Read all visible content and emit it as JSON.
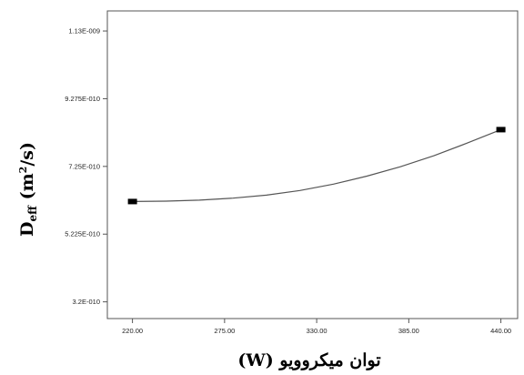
{
  "chart_data": {
    "type": "line",
    "title": "",
    "xlabel": "(W) توان میکروویو",
    "ylabel": {
      "main": "D",
      "sub": "eff",
      "unit_open": " (m",
      "unit_sup": "2",
      "unit_close": "/s)"
    },
    "xlim": [
      205,
      450
    ],
    "ylim": [
      2.7e-10,
      1.19e-09
    ],
    "x_ticks": [
      220,
      275,
      330,
      385,
      440
    ],
    "x_tick_labels": [
      "220.00",
      "275.00",
      "330.00",
      "385.00",
      "440.00"
    ],
    "y_ticks": [
      3.2e-10,
      5.225e-10,
      7.25e-10,
      9.275e-10,
      1.13e-09
    ],
    "y_tick_labels": [
      "3.2E-010",
      "5.225E-010",
      "7.25E-010",
      "9.275E-010",
      "1.13E-009"
    ],
    "series": [
      {
        "x": [
          220,
          240,
          260,
          280,
          300,
          320,
          340,
          360,
          380,
          400,
          420,
          440
        ],
        "y": [
          6.2e-10,
          6.21e-10,
          6.24e-10,
          6.3e-10,
          6.39e-10,
          6.53e-10,
          6.72e-10,
          6.96e-10,
          7.24e-10,
          7.57e-10,
          7.95e-10,
          8.35e-10
        ]
      }
    ],
    "points": [
      {
        "x": 220,
        "y": 6.2e-10
      },
      {
        "x": 440,
        "y": 8.35e-10
      }
    ],
    "grid": false,
    "line_color": "#555555",
    "marker_color": "#000000"
  }
}
